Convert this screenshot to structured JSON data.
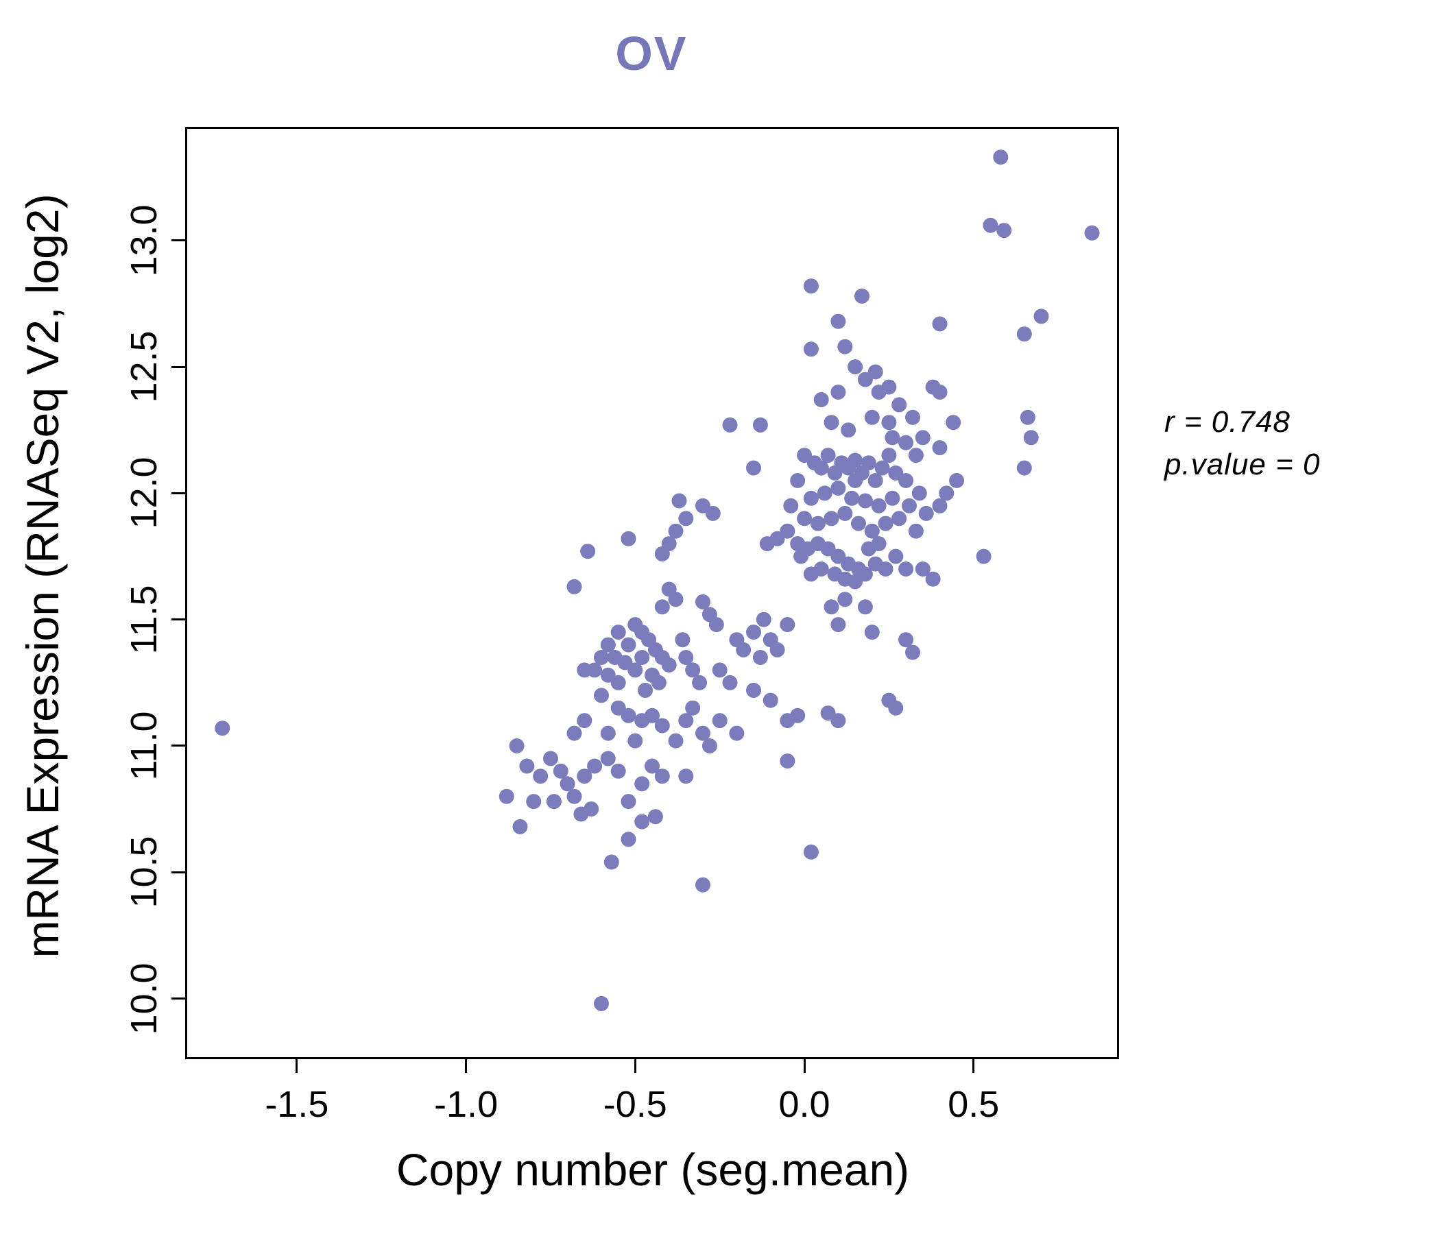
{
  "colors": {
    "title": "#7577b9",
    "point": "#7b7cbc",
    "axis": "#000000",
    "background": "#ffffff"
  },
  "annotation": {
    "line1": "r = 0.748",
    "line2": "p.value = 0"
  },
  "chart_data": {
    "type": "scatter",
    "title": "OV",
    "xlabel": "Copy number (seg.mean)",
    "ylabel": "mRNA Expression (RNASeq V2, log2)",
    "xlim": [
      -1.83,
      0.93
    ],
    "ylim": [
      9.76,
      13.45
    ],
    "grid": false,
    "legend": "none",
    "stats": {
      "r": 0.748,
      "p_value": 0
    },
    "x_ticks": [
      {
        "v": -1.5,
        "label": "-1.5"
      },
      {
        "v": -1.0,
        "label": "-1.0"
      },
      {
        "v": -0.5,
        "label": "-0.5"
      },
      {
        "v": 0.0,
        "label": "0.0"
      },
      {
        "v": 0.5,
        "label": "0.5"
      }
    ],
    "y_ticks": [
      {
        "v": 10.0,
        "label": "10.0"
      },
      {
        "v": 10.5,
        "label": "10.5"
      },
      {
        "v": 11.0,
        "label": "11.0"
      },
      {
        "v": 11.5,
        "label": "11.5"
      },
      {
        "v": 12.0,
        "label": "12.0"
      },
      {
        "v": 12.5,
        "label": "12.5"
      },
      {
        "v": 13.0,
        "label": "13.0"
      }
    ],
    "points": [
      [
        -1.72,
        11.07
      ],
      [
        -0.6,
        9.98
      ],
      [
        0.58,
        13.33
      ],
      [
        0.55,
        13.06
      ],
      [
        0.59,
        13.04
      ],
      [
        0.85,
        13.03
      ],
      [
        0.7,
        12.7
      ],
      [
        0.65,
        12.63
      ],
      [
        0.4,
        12.67
      ],
      [
        0.66,
        12.3
      ],
      [
        0.67,
        12.22
      ],
      [
        0.65,
        12.1
      ],
      [
        0.02,
        12.82
      ],
      [
        0.17,
        12.78
      ],
      [
        0.1,
        12.68
      ],
      [
        0.12,
        12.58
      ],
      [
        0.02,
        12.57
      ],
      [
        0.15,
        12.5
      ],
      [
        0.18,
        12.45
      ],
      [
        0.21,
        12.48
      ],
      [
        0.22,
        12.4
      ],
      [
        0.25,
        12.42
      ],
      [
        0.1,
        12.4
      ],
      [
        0.05,
        12.37
      ],
      [
        0.28,
        12.35
      ],
      [
        0.32,
        12.3
      ],
      [
        0.2,
        12.3
      ],
      [
        0.08,
        12.28
      ],
      [
        0.4,
        12.4
      ],
      [
        0.3,
        12.2
      ],
      [
        0.26,
        12.22
      ],
      [
        0.4,
        12.18
      ],
      [
        0.13,
        12.25
      ],
      [
        -0.13,
        12.27
      ],
      [
        0.0,
        12.15
      ],
      [
        0.03,
        12.12
      ],
      [
        0.05,
        12.1
      ],
      [
        0.07,
        12.15
      ],
      [
        0.09,
        12.08
      ],
      [
        0.11,
        12.12
      ],
      [
        0.13,
        12.1
      ],
      [
        0.15,
        12.13
      ],
      [
        0.15,
        12.05
      ],
      [
        0.17,
        12.08
      ],
      [
        0.19,
        12.12
      ],
      [
        0.21,
        12.05
      ],
      [
        0.23,
        12.1
      ],
      [
        0.25,
        12.15
      ],
      [
        0.27,
        12.08
      ],
      [
        0.1,
        12.02
      ],
      [
        0.06,
        12.0
      ],
      [
        0.02,
        11.98
      ],
      [
        0.14,
        11.98
      ],
      [
        0.18,
        11.97
      ],
      [
        0.22,
        11.95
      ],
      [
        0.26,
        11.98
      ],
      [
        0.3,
        12.05
      ],
      [
        0.33,
        12.15
      ],
      [
        0.35,
        12.22
      ],
      [
        0.12,
        11.92
      ],
      [
        0.08,
        11.9
      ],
      [
        0.04,
        11.88
      ],
      [
        0.0,
        11.9
      ],
      [
        -0.04,
        11.95
      ],
      [
        -0.02,
        12.05
      ],
      [
        0.16,
        11.88
      ],
      [
        0.2,
        11.85
      ],
      [
        0.24,
        11.88
      ],
      [
        0.28,
        11.9
      ],
      [
        0.31,
        11.95
      ],
      [
        0.34,
        12.0
      ],
      [
        0.36,
        11.92
      ],
      [
        0.25,
        12.28
      ],
      [
        -0.3,
        11.95
      ],
      [
        -0.27,
        11.92
      ],
      [
        -0.35,
        11.9
      ],
      [
        -0.22,
        12.27
      ],
      [
        -0.15,
        12.1
      ],
      [
        -0.37,
        11.97
      ],
      [
        -0.02,
        11.8
      ],
      [
        0.01,
        11.78
      ],
      [
        0.04,
        11.8
      ],
      [
        0.07,
        11.78
      ],
      [
        0.1,
        11.75
      ],
      [
        0.13,
        11.72
      ],
      [
        0.16,
        11.7
      ],
      [
        0.05,
        11.7
      ],
      [
        0.02,
        11.68
      ],
      [
        -0.01,
        11.75
      ],
      [
        0.09,
        11.68
      ],
      [
        0.12,
        11.66
      ],
      [
        0.15,
        11.65
      ],
      [
        0.18,
        11.68
      ],
      [
        0.21,
        11.72
      ],
      [
        0.24,
        11.7
      ],
      [
        0.19,
        11.78
      ],
      [
        0.22,
        11.8
      ],
      [
        0.27,
        11.75
      ],
      [
        0.3,
        11.7
      ],
      [
        0.35,
        11.7
      ],
      [
        0.38,
        11.66
      ],
      [
        0.53,
        11.75
      ],
      [
        -0.05,
        11.85
      ],
      [
        -0.08,
        11.82
      ],
      [
        -0.11,
        11.8
      ],
      [
        -0.64,
        11.77
      ],
      [
        -0.52,
        11.82
      ],
      [
        -0.4,
        11.8
      ],
      [
        -0.42,
        11.76
      ],
      [
        -0.38,
        11.85
      ],
      [
        0.12,
        11.58
      ],
      [
        0.08,
        11.55
      ],
      [
        0.18,
        11.55
      ],
      [
        0.1,
        11.48
      ],
      [
        0.2,
        11.45
      ],
      [
        -0.68,
        11.63
      ],
      [
        -0.4,
        11.62
      ],
      [
        -0.38,
        11.58
      ],
      [
        -0.42,
        11.55
      ],
      [
        -0.3,
        11.57
      ],
      [
        -0.28,
        11.52
      ],
      [
        -0.26,
        11.48
      ],
      [
        -0.5,
        11.48
      ],
      [
        -0.48,
        11.45
      ],
      [
        -0.46,
        11.42
      ],
      [
        -0.52,
        11.4
      ],
      [
        -0.55,
        11.45
      ],
      [
        -0.58,
        11.4
      ],
      [
        -0.44,
        11.38
      ],
      [
        -0.42,
        11.35
      ],
      [
        -0.4,
        11.32
      ],
      [
        -0.48,
        11.35
      ],
      [
        -0.5,
        11.3
      ],
      [
        -0.53,
        11.33
      ],
      [
        -0.56,
        11.35
      ],
      [
        -0.6,
        11.35
      ],
      [
        -0.62,
        11.3
      ],
      [
        -0.45,
        11.28
      ],
      [
        -0.43,
        11.25
      ],
      [
        -0.47,
        11.22
      ],
      [
        -0.55,
        11.25
      ],
      [
        -0.58,
        11.28
      ],
      [
        -0.35,
        11.35
      ],
      [
        -0.33,
        11.3
      ],
      [
        -0.31,
        11.25
      ],
      [
        -0.36,
        11.42
      ],
      [
        -0.25,
        11.3
      ],
      [
        -0.2,
        11.42
      ],
      [
        -0.18,
        11.38
      ],
      [
        -0.15,
        11.45
      ],
      [
        -0.12,
        11.5
      ],
      [
        -0.1,
        11.42
      ],
      [
        -0.13,
        11.35
      ],
      [
        -0.08,
        11.38
      ],
      [
        -0.05,
        11.48
      ],
      [
        -0.22,
        11.25
      ],
      [
        -0.65,
        11.3
      ],
      [
        -0.6,
        11.2
      ],
      [
        -0.55,
        11.15
      ],
      [
        -0.52,
        11.12
      ],
      [
        -0.48,
        11.1
      ],
      [
        -0.45,
        11.12
      ],
      [
        -0.42,
        11.08
      ],
      [
        -0.65,
        11.1
      ],
      [
        -0.68,
        11.05
      ],
      [
        -0.35,
        11.1
      ],
      [
        -0.3,
        11.05
      ],
      [
        -0.33,
        11.15
      ],
      [
        -0.25,
        11.1
      ],
      [
        -0.28,
        11.0
      ],
      [
        -0.38,
        11.02
      ],
      [
        -0.5,
        11.02
      ],
      [
        -0.58,
        11.05
      ],
      [
        -0.15,
        11.22
      ],
      [
        -0.1,
        11.18
      ],
      [
        -0.05,
        11.1
      ],
      [
        0.07,
        11.13
      ],
      [
        0.1,
        11.1
      ],
      [
        -0.2,
        11.05
      ],
      [
        -0.02,
        11.12
      ],
      [
        -0.85,
        11.0
      ],
      [
        -0.82,
        10.92
      ],
      [
        -0.78,
        10.88
      ],
      [
        -0.75,
        10.95
      ],
      [
        -0.72,
        10.9
      ],
      [
        -0.7,
        10.85
      ],
      [
        -0.68,
        10.8
      ],
      [
        -0.74,
        10.78
      ],
      [
        -0.8,
        10.78
      ],
      [
        -0.88,
        10.8
      ],
      [
        -0.84,
        10.68
      ],
      [
        -0.65,
        10.88
      ],
      [
        -0.62,
        10.92
      ],
      [
        -0.58,
        10.95
      ],
      [
        -0.55,
        10.9
      ],
      [
        -0.63,
        10.75
      ],
      [
        -0.66,
        10.73
      ],
      [
        -0.45,
        10.92
      ],
      [
        -0.42,
        10.88
      ],
      [
        -0.48,
        10.85
      ],
      [
        -0.52,
        10.78
      ],
      [
        -0.35,
        10.88
      ],
      [
        -0.05,
        10.94
      ],
      [
        -0.57,
        10.54
      ],
      [
        -0.52,
        10.63
      ],
      [
        -0.3,
        10.45
      ],
      [
        0.02,
        10.58
      ],
      [
        -0.48,
        10.7
      ],
      [
        -0.44,
        10.72
      ],
      [
        0.4,
        11.95
      ],
      [
        0.42,
        12.0
      ],
      [
        0.45,
        12.05
      ],
      [
        0.44,
        12.28
      ],
      [
        0.33,
        11.85
      ],
      [
        0.3,
        11.42
      ],
      [
        0.32,
        11.37
      ],
      [
        0.25,
        11.18
      ],
      [
        0.27,
        11.15
      ],
      [
        0.38,
        12.42
      ]
    ]
  }
}
